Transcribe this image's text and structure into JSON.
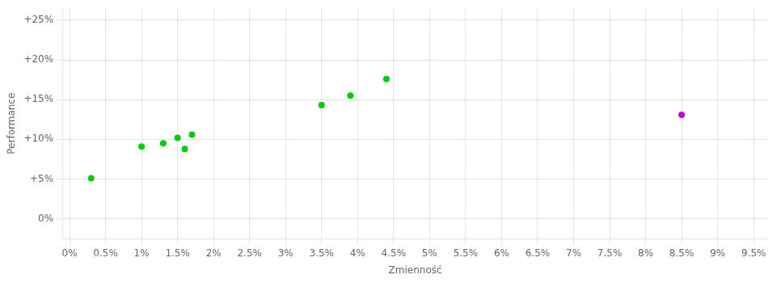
{
  "chart_data": {
    "type": "scatter",
    "xlabel": "Zmienność",
    "ylabel": "Performance",
    "series": [
      {
        "color": "#00cc00",
        "x": [
          0.003,
          0.01,
          0.013,
          0.015,
          0.016,
          0.017,
          0.035,
          0.039,
          0.044
        ],
        "values": [
          0.051,
          0.091,
          0.095,
          0.102,
          0.088,
          0.106,
          0.143,
          0.155,
          0.176
        ]
      },
      {
        "color": "#cc00cc",
        "x": [
          0.085
        ],
        "values": [
          0.131
        ]
      }
    ],
    "xlim": [
      -0.001,
      0.097
    ],
    "ylim": [
      -0.025,
      0.265
    ],
    "xticks": [
      {
        "value": 0.0,
        "label": "0%"
      },
      {
        "value": 0.005,
        "label": "0.5%"
      },
      {
        "value": 0.01,
        "label": "1%"
      },
      {
        "value": 0.015,
        "label": "1.5%"
      },
      {
        "value": 0.02,
        "label": "2%"
      },
      {
        "value": 0.025,
        "label": "2.5%"
      },
      {
        "value": 0.03,
        "label": "3%"
      },
      {
        "value": 0.035,
        "label": "3.5%"
      },
      {
        "value": 0.04,
        "label": "4%"
      },
      {
        "value": 0.045,
        "label": "4.5%"
      },
      {
        "value": 0.05,
        "label": "5%"
      },
      {
        "value": 0.055,
        "label": "5.5%"
      },
      {
        "value": 0.06,
        "label": "6%"
      },
      {
        "value": 0.065,
        "label": "6.5%"
      },
      {
        "value": 0.07,
        "label": "7%"
      },
      {
        "value": 0.075,
        "label": "7.5%"
      },
      {
        "value": 0.08,
        "label": "8%"
      },
      {
        "value": 0.085,
        "label": "8.5%"
      },
      {
        "value": 0.09,
        "label": "9%"
      },
      {
        "value": 0.095,
        "label": "9.5%"
      }
    ],
    "yticks": [
      {
        "value": 0.0,
        "label": "0%"
      },
      {
        "value": 0.05,
        "label": "+5%"
      },
      {
        "value": 0.1,
        "label": "+10%"
      },
      {
        "value": 0.15,
        "label": "+15%"
      },
      {
        "value": 0.2,
        "label": "+20%"
      },
      {
        "value": 0.25,
        "label": "+25%"
      }
    ],
    "grid": true
  }
}
